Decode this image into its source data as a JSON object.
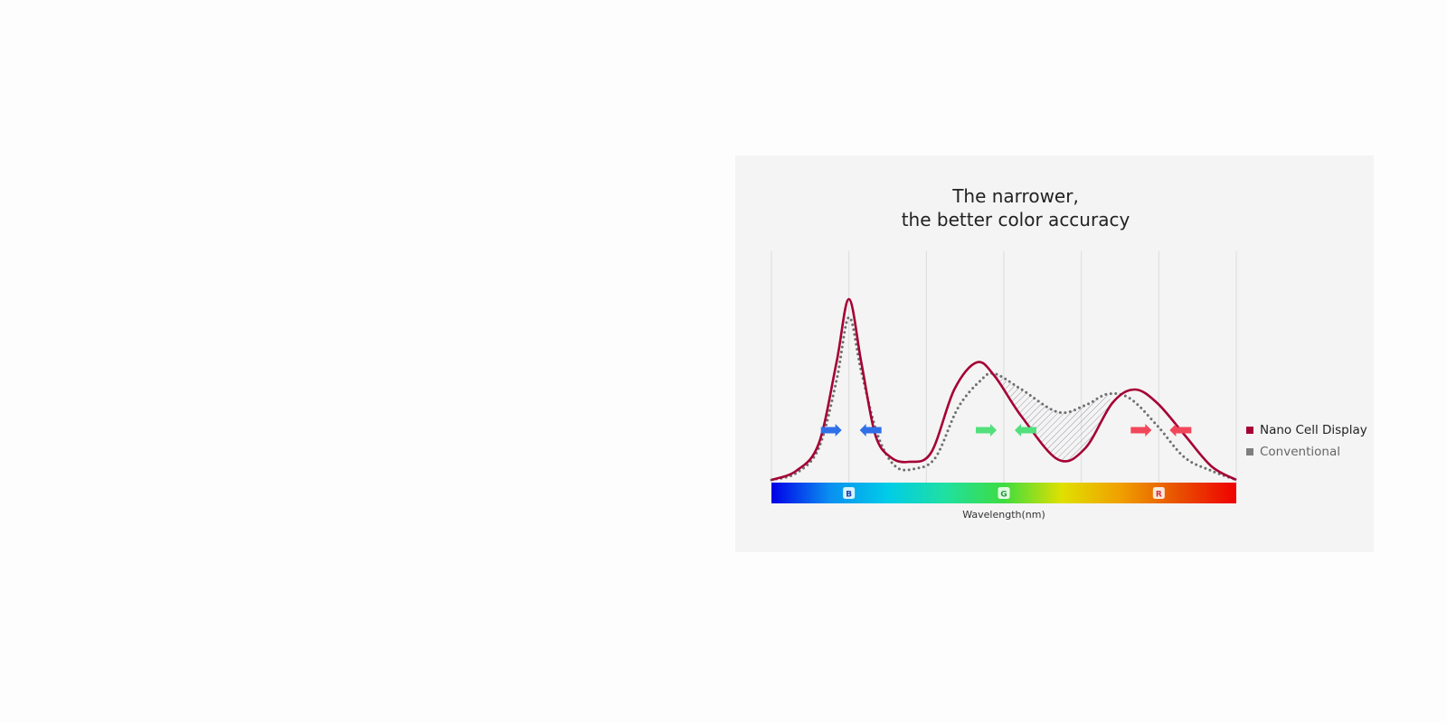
{
  "chart_data": {
    "type": "line",
    "title": [
      "The narrower,",
      "the better color accuracy"
    ],
    "xlabel": "Wavelength(nm)",
    "ylabel": "",
    "xlim": [
      0,
      6
    ],
    "ylim": [
      0,
      1
    ],
    "grid": true,
    "legend_position": "right",
    "band_labels": [
      {
        "label": "B",
        "x": 1
      },
      {
        "label": "G",
        "x": 3
      },
      {
        "label": "R",
        "x": 5
      }
    ],
    "series": [
      {
        "name": "Nano Cell Display",
        "color": "#a50034",
        "style": "solid",
        "points": [
          [
            0,
            0
          ],
          [
            0.32,
            0.04
          ],
          [
            0.61,
            0.16
          ],
          [
            0.84,
            0.52
          ],
          [
            1.0,
            0.8
          ],
          [
            1.16,
            0.52
          ],
          [
            1.34,
            0.2
          ],
          [
            1.54,
            0.1
          ],
          [
            1.77,
            0.08
          ],
          [
            2.06,
            0.12
          ],
          [
            2.36,
            0.4
          ],
          [
            2.65,
            0.52
          ],
          [
            2.88,
            0.46
          ],
          [
            3.23,
            0.28
          ],
          [
            3.7,
            0.09
          ],
          [
            4.05,
            0.14
          ],
          [
            4.4,
            0.34
          ],
          [
            4.69,
            0.4
          ],
          [
            4.98,
            0.34
          ],
          [
            5.33,
            0.2
          ],
          [
            5.68,
            0.06
          ],
          [
            6.0,
            0
          ]
        ]
      },
      {
        "name": "Conventional",
        "color": "#6f6f6f",
        "style": "dotted",
        "points": [
          [
            0,
            0
          ],
          [
            0.32,
            0.03
          ],
          [
            0.61,
            0.14
          ],
          [
            0.84,
            0.44
          ],
          [
            1.0,
            0.72
          ],
          [
            1.16,
            0.48
          ],
          [
            1.37,
            0.2
          ],
          [
            1.6,
            0.06
          ],
          [
            1.86,
            0.05
          ],
          [
            2.12,
            0.1
          ],
          [
            2.41,
            0.32
          ],
          [
            2.7,
            0.44
          ],
          [
            2.88,
            0.47
          ],
          [
            3.23,
            0.4
          ],
          [
            3.7,
            0.3
          ],
          [
            4.05,
            0.33
          ],
          [
            4.34,
            0.38
          ],
          [
            4.63,
            0.36
          ],
          [
            4.98,
            0.24
          ],
          [
            5.33,
            0.1
          ],
          [
            5.68,
            0.04
          ],
          [
            6.0,
            0
          ]
        ]
      }
    ],
    "arrows": [
      {
        "band": "B",
        "color": "#2f6fe8",
        "directions": [
          "right",
          "left"
        ]
      },
      {
        "band": "G",
        "color": "#52e07c",
        "directions": [
          "right",
          "left"
        ]
      },
      {
        "band": "R",
        "color": "#f2475a",
        "directions": [
          "right",
          "left"
        ]
      }
    ],
    "spectrum_colors": [
      "#0000e8",
      "#0a8ff0",
      "#00cce8",
      "#20e0a0",
      "#3edc40",
      "#e0e000",
      "#f0a000",
      "#e85000",
      "#f00000"
    ]
  }
}
